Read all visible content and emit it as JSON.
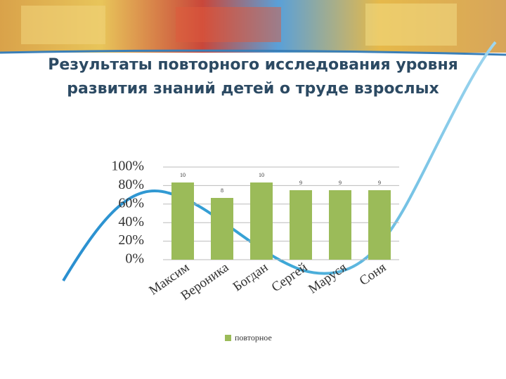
{
  "chart_data": {
    "type": "bar",
    "title": "Результаты повторного  исследования уровня развития знаний детей о труде взрослых",
    "categories": [
      "Максим",
      "Вероника",
      "Богдан",
      "Сергей",
      "Маруся",
      "Соня"
    ],
    "series": [
      {
        "name": "повторное",
        "color": "#9bbb59",
        "values": [
          10,
          8,
          10,
          9,
          9,
          9
        ]
      }
    ],
    "ylim": [
      0,
      12
    ],
    "yticks": [
      {
        "value": 0,
        "label": "0%"
      },
      {
        "value": 2.4,
        "label": "20%"
      },
      {
        "value": 4.8,
        "label": "40%"
      },
      {
        "value": 7.2,
        "label": "60%"
      },
      {
        "value": 9.6,
        "label": "80%"
      },
      {
        "value": 12,
        "label": "100%"
      }
    ],
    "grid": true,
    "legend": "bottom"
  }
}
